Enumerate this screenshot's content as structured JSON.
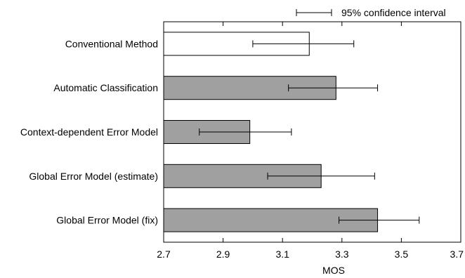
{
  "chart_data": {
    "type": "bar",
    "orientation": "horizontal",
    "categories": [
      "Conventional Method",
      "Automatic Classification",
      "Context-dependent Error Model",
      "Global Error Model (estimate)",
      "Global Error Model (fix)"
    ],
    "values": [
      3.19,
      3.28,
      2.99,
      3.23,
      3.42
    ],
    "ci_low": [
      3.0,
      3.12,
      2.82,
      3.05,
      3.29
    ],
    "ci_high": [
      3.34,
      3.42,
      3.13,
      3.41,
      3.56
    ],
    "bar_colors": [
      "#ffffff",
      "#a0a0a0",
      "#a0a0a0",
      "#a0a0a0",
      "#a0a0a0"
    ],
    "xlabel": "MOS",
    "xlim": [
      2.7,
      3.7
    ],
    "xticks": [
      "2.7",
      "2.9",
      "3.1",
      "3.3",
      "3.5",
      "3.7"
    ],
    "legend": {
      "label": "95% confidence interval",
      "position": "top-right"
    },
    "grid": false
  }
}
